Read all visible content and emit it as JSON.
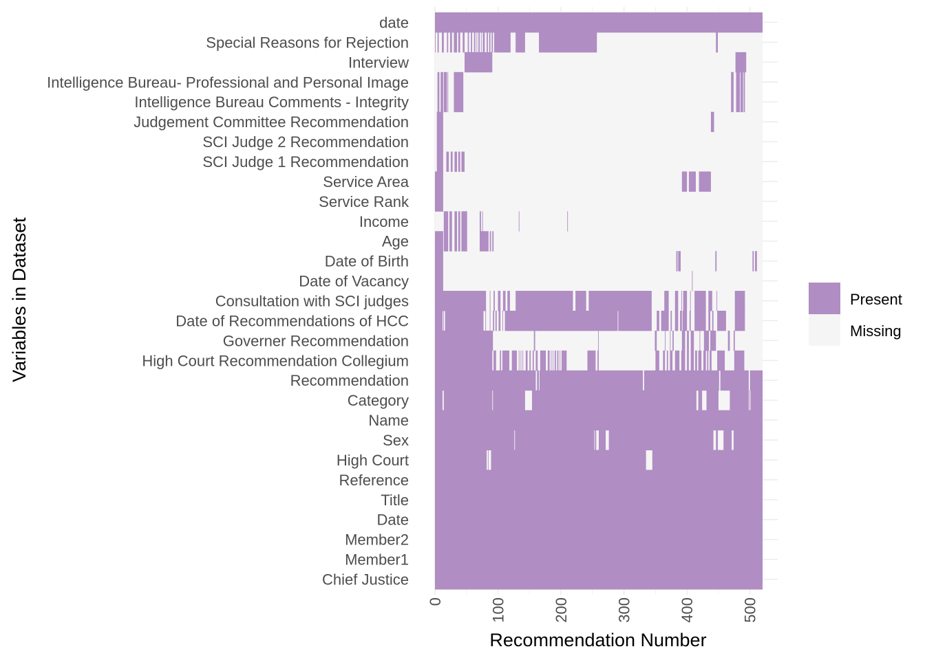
{
  "chart_data": {
    "type": "heatmap",
    "xlabel": "Recommendation Number",
    "ylabel": "Variables in Dataset",
    "xlim": [
      0,
      520
    ],
    "xticks": [
      "0",
      "100",
      "200",
      "300",
      "400",
      "500"
    ],
    "grid": true,
    "legend_position": "right",
    "legend": [
      {
        "label": "Present",
        "color": "#b08dc3"
      },
      {
        "label": "Missing",
        "color": "#f5f5f5"
      }
    ],
    "variables": [
      {
        "name": "date",
        "present": [
          [
            0,
            520
          ]
        ]
      },
      {
        "name": "Special Reasons for Rejection",
        "present": [
          [
            0,
            1
          ],
          [
            4,
            6
          ],
          [
            11,
            14
          ],
          [
            19,
            21
          ],
          [
            24,
            27
          ],
          [
            30,
            35
          ],
          [
            37,
            40
          ],
          [
            44,
            47
          ],
          [
            52,
            54
          ],
          [
            57,
            59
          ],
          [
            62,
            64
          ],
          [
            66,
            67
          ],
          [
            69,
            71
          ],
          [
            73,
            74
          ],
          [
            76,
            79
          ],
          [
            82,
            84
          ],
          [
            86,
            88
          ],
          [
            90,
            92
          ],
          [
            94,
            120
          ],
          [
            128,
            143
          ],
          [
            165,
            257
          ],
          [
            446,
            449
          ]
        ]
      },
      {
        "name": "Interview",
        "present": [
          [
            47,
            91
          ],
          [
            477,
            494
          ]
        ]
      },
      {
        "name": "Intelligence Bureau- Professional  and Personal Image",
        "present": [
          [
            4,
            7
          ],
          [
            9,
            13
          ],
          [
            14,
            19
          ],
          [
            20,
            21
          ],
          [
            30,
            45
          ],
          [
            470,
            474
          ],
          [
            478,
            484
          ],
          [
            485,
            489
          ],
          [
            490,
            492
          ]
        ]
      },
      {
        "name": "Intelligence Bureau Comments - Integrity",
        "present": [
          [
            4,
            7
          ],
          [
            9,
            13
          ],
          [
            14,
            19
          ],
          [
            20,
            21
          ],
          [
            30,
            45
          ],
          [
            470,
            474
          ],
          [
            478,
            484
          ],
          [
            485,
            489
          ],
          [
            490,
            492
          ]
        ]
      },
      {
        "name": "Judgement Committee Recommendation",
        "present": [
          [
            3,
            13
          ],
          [
            438,
            443
          ]
        ]
      },
      {
        "name": "SCI Judge 2 Recommendation",
        "present": [
          [
            3,
            13
          ]
        ]
      },
      {
        "name": "SCI Judge 1 Recommendation",
        "present": [
          [
            3,
            13
          ],
          [
            18,
            22
          ],
          [
            25,
            28
          ],
          [
            31,
            35
          ],
          [
            37,
            40
          ],
          [
            42,
            47
          ]
        ]
      },
      {
        "name": "Service Area",
        "present": [
          [
            0,
            13
          ],
          [
            392,
            400
          ],
          [
            403,
            414
          ],
          [
            419,
            438
          ]
        ]
      },
      {
        "name": "Service Rank",
        "present": [
          [
            0,
            13
          ]
        ]
      },
      {
        "name": "Income",
        "present": [
          [
            14,
            21
          ],
          [
            23,
            27
          ],
          [
            31,
            35
          ],
          [
            37,
            40
          ],
          [
            42,
            51
          ],
          [
            71,
            73
          ],
          [
            75,
            76
          ],
          [
            133,
            134
          ],
          [
            210,
            211
          ]
        ]
      },
      {
        "name": "Age",
        "present": [
          [
            0,
            13
          ],
          [
            14,
            21
          ],
          [
            23,
            27
          ],
          [
            31,
            35
          ],
          [
            37,
            40
          ],
          [
            42,
            51
          ],
          [
            71,
            85
          ],
          [
            87,
            89
          ],
          [
            91,
            93
          ]
        ]
      },
      {
        "name": "Date of Birth",
        "present": [
          [
            0,
            13
          ],
          [
            383,
            385
          ],
          [
            386,
            390
          ],
          [
            445,
            447
          ],
          [
            504,
            506
          ],
          [
            508,
            511
          ]
        ]
      },
      {
        "name": "Date of Vacancy",
        "present": [
          [
            0,
            13
          ],
          [
            408,
            409
          ]
        ]
      },
      {
        "name": "Consultation with SCI judges",
        "present": [
          [
            0,
            81
          ],
          [
            87,
            88
          ],
          [
            93,
            95
          ],
          [
            100,
            104
          ],
          [
            108,
            112
          ],
          [
            115,
            119
          ],
          [
            128,
            219
          ],
          [
            223,
            240
          ],
          [
            244,
            344
          ],
          [
            364,
            371
          ],
          [
            381,
            386
          ],
          [
            391,
            392
          ],
          [
            394,
            400
          ],
          [
            405,
            406
          ],
          [
            412,
            430
          ],
          [
            434,
            440
          ],
          [
            447,
            448
          ],
          [
            476,
            492
          ]
        ]
      },
      {
        "name": "Date of Recommendations of HCC",
        "present": [
          [
            0,
            12
          ],
          [
            13,
            14
          ],
          [
            16,
            77
          ],
          [
            80,
            81
          ],
          [
            87,
            88
          ],
          [
            92,
            94
          ],
          [
            96,
            98
          ],
          [
            101,
            104
          ],
          [
            107,
            108
          ],
          [
            111,
            290
          ],
          [
            291,
            344
          ],
          [
            352,
            356
          ],
          [
            359,
            371
          ],
          [
            374,
            376
          ],
          [
            381,
            386
          ],
          [
            389,
            392
          ],
          [
            393,
            400
          ],
          [
            404,
            406
          ],
          [
            412,
            430
          ],
          [
            434,
            437
          ],
          [
            440,
            442
          ],
          [
            448,
            462
          ],
          [
            476,
            492
          ]
        ]
      },
      {
        "name": "Governer Recommendation",
        "present": [
          [
            0,
            92
          ],
          [
            157,
            159
          ],
          [
            259,
            260
          ],
          [
            349,
            352
          ],
          [
            365,
            366
          ],
          [
            373,
            374
          ],
          [
            377,
            379
          ],
          [
            392,
            397
          ],
          [
            400,
            403
          ],
          [
            406,
            411
          ],
          [
            420,
            421
          ],
          [
            427,
            435
          ],
          [
            437,
            446
          ],
          [
            465,
            468
          ],
          [
            474,
            476
          ]
        ]
      },
      {
        "name": "High Court Recommendation Collegium",
        "present": [
          [
            0,
            91
          ],
          [
            93,
            97
          ],
          [
            103,
            105
          ],
          [
            107,
            118
          ],
          [
            122,
            130
          ],
          [
            133,
            134
          ],
          [
            136,
            137
          ],
          [
            139,
            140
          ],
          [
            144,
            147
          ],
          [
            150,
            152
          ],
          [
            155,
            157
          ],
          [
            160,
            163
          ],
          [
            167,
            176
          ],
          [
            179,
            182
          ],
          [
            184,
            185
          ],
          [
            187,
            188
          ],
          [
            190,
            192
          ],
          [
            194,
            196
          ],
          [
            198,
            199
          ],
          [
            201,
            209
          ],
          [
            242,
            255
          ],
          [
            258,
            260
          ],
          [
            350,
            356
          ],
          [
            362,
            365
          ],
          [
            368,
            370
          ],
          [
            373,
            377
          ],
          [
            381,
            388
          ],
          [
            391,
            397
          ],
          [
            400,
            403
          ],
          [
            406,
            411
          ],
          [
            413,
            416
          ],
          [
            418,
            423
          ],
          [
            426,
            430
          ],
          [
            432,
            434
          ],
          [
            436,
            439
          ],
          [
            448,
            460
          ],
          [
            475,
            491
          ]
        ]
      },
      {
        "name": "Recommendation",
        "present": [
          [
            0,
            160
          ],
          [
            162,
            165
          ],
          [
            166,
            330
          ],
          [
            332,
            451
          ],
          [
            453,
            498
          ],
          [
            500,
            520
          ]
        ]
      },
      {
        "name": "Category",
        "present": [
          [
            0,
            12
          ],
          [
            14,
            91
          ],
          [
            92,
            143
          ],
          [
            154,
            415
          ],
          [
            418,
            424
          ],
          [
            431,
            450
          ],
          [
            468,
            498
          ],
          [
            499,
            500
          ],
          [
            501,
            520
          ]
        ]
      },
      {
        "name": "Name",
        "present": [
          [
            0,
            520
          ]
        ]
      },
      {
        "name": "Sex",
        "present": [
          [
            0,
            126
          ],
          [
            127,
            253
          ],
          [
            254,
            256
          ],
          [
            260,
            271
          ],
          [
            276,
            442
          ],
          [
            446,
            449
          ],
          [
            458,
            471
          ],
          [
            474,
            520
          ]
        ]
      },
      {
        "name": "High Court",
        "present": [
          [
            0,
            82
          ],
          [
            84,
            85
          ],
          [
            89,
            335
          ],
          [
            345,
            520
          ]
        ]
      },
      {
        "name": "Reference",
        "present": [
          [
            0,
            520
          ]
        ]
      },
      {
        "name": "Title",
        "present": [
          [
            0,
            520
          ]
        ]
      },
      {
        "name": "Date",
        "present": [
          [
            0,
            520
          ]
        ]
      },
      {
        "name": "Member2",
        "present": [
          [
            0,
            520
          ]
        ]
      },
      {
        "name": "Member1",
        "present": [
          [
            0,
            520
          ]
        ]
      },
      {
        "name": "Chief Justice",
        "present": [
          [
            0,
            520
          ]
        ]
      }
    ]
  }
}
